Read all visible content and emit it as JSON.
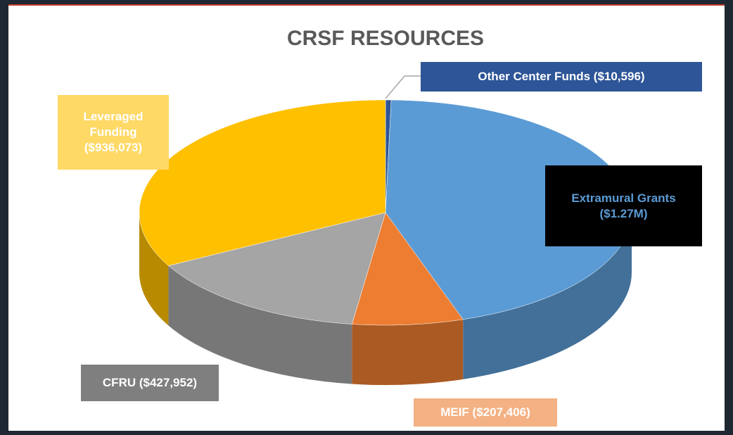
{
  "chart_data": {
    "type": "pie3d",
    "title": "CRSF RESOURCES",
    "categories": [
      "Other Center Funds",
      "Extramural Grants",
      "MEIF",
      "CFRU",
      "Leveraged Funding"
    ],
    "values": [
      10596,
      1270000,
      207406,
      427952,
      936073
    ],
    "value_labels": [
      "($10,596)",
      "($1.27M)",
      "($207,406)",
      "($427,952)",
      "($936,073)"
    ],
    "colors": [
      "#2e5597",
      "#5b9bd5",
      "#ed7d31",
      "#a5a5a5",
      "#ffc000"
    ]
  }
}
